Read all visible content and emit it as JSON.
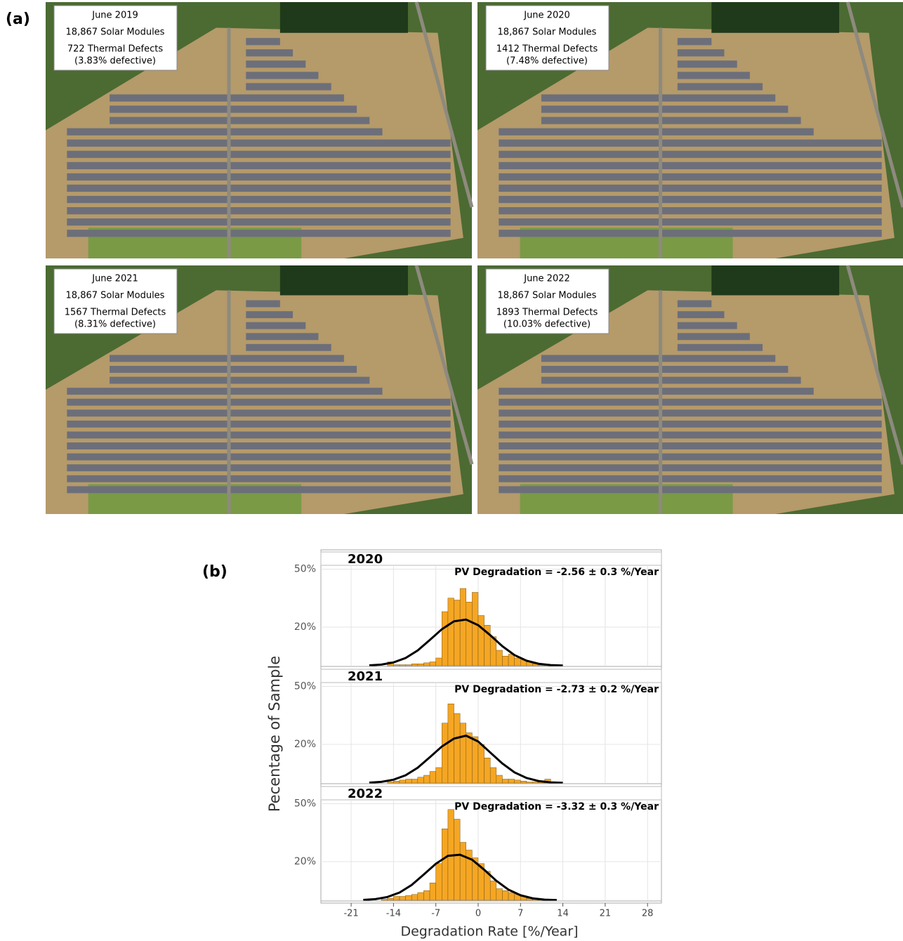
{
  "figure": {
    "panel_a_label": "(a)",
    "panel_b_label": "(b)"
  },
  "aerial_panels": [
    {
      "date": "June 2019",
      "modules": "18,867 Solar Modules",
      "defects": "722 Thermal Defects",
      "percent": "(3.83% defective)"
    },
    {
      "date": "June 2020",
      "modules": "18,867 Solar Modules",
      "defects": "1412 Thermal Defects",
      "percent": "(7.48% defective)"
    },
    {
      "date": "June 2021",
      "modules": "18,867 Solar Modules",
      "defects": "1567 Thermal Defects",
      "percent": "(8.31% defective)"
    },
    {
      "date": "June 2022",
      "modules": "18,867 Solar Modules",
      "defects": "1893 Thermal Defects",
      "percent": "(10.03% defective)"
    }
  ],
  "chart_data": [
    {
      "type": "histogram",
      "title": "2020",
      "annotation": "PV Degradation = -2.56 ± 0.3 %/Year",
      "color": "#f5a623",
      "bins": [
        -16,
        -15,
        -14,
        -13,
        -12,
        -11,
        -10,
        -9,
        -8,
        -7,
        -6,
        -5,
        -4,
        -3,
        -2,
        -1,
        0,
        1,
        2,
        3,
        4,
        5,
        6,
        7,
        8,
        9,
        10,
        11,
        12,
        13,
        14
      ],
      "values": [
        0,
        2,
        0.5,
        0.5,
        0.5,
        1,
        1,
        1.5,
        2,
        4,
        28,
        35,
        34,
        40,
        33,
        38,
        26,
        21,
        15,
        8,
        5,
        6,
        4,
        3,
        2,
        1,
        1,
        0.5,
        0,
        0
      ],
      "curve": {
        "x": [
          -18,
          -16,
          -14,
          -12,
          -10,
          -8,
          -6,
          -4,
          -2,
          0,
          2,
          4,
          6,
          8,
          10,
          12,
          14
        ],
        "values": [
          0.2,
          0.6,
          1.7,
          4,
          7.9,
          13.3,
          18.9,
          23,
          23.9,
          21,
          15.8,
          10.1,
          5.5,
          2.6,
          1,
          0.3,
          0.1
        ]
      },
      "xlim": [
        -26,
        30.3
      ],
      "ylim": [
        0,
        52
      ],
      "yticks": [
        {
          "value": 20,
          "label": "20%"
        },
        {
          "value": 50,
          "label": "50%"
        }
      ]
    },
    {
      "type": "histogram",
      "title": "2021",
      "annotation": "PV Degradation = -2.73 ± 0.2 %/Year",
      "color": "#f5a623",
      "bins": [
        -16,
        -15,
        -14,
        -13,
        -12,
        -11,
        -10,
        -9,
        -8,
        -7,
        -6,
        -5,
        -4,
        -3,
        -2,
        -1,
        0,
        1,
        2,
        3,
        4,
        5,
        6,
        7,
        8,
        9,
        10,
        11,
        12,
        13,
        14
      ],
      "values": [
        0,
        0.5,
        1,
        1.5,
        2,
        2,
        3,
        4,
        6,
        8,
        31,
        41,
        36,
        31,
        26,
        24,
        20,
        13,
        8,
        4,
        2,
        2,
        1.5,
        1,
        0.5,
        0.5,
        0.5,
        2,
        0,
        0
      ],
      "curve": {
        "x": [
          -18,
          -16,
          -14,
          -12,
          -10,
          -8,
          -6,
          -4,
          -2,
          0,
          2,
          4,
          6,
          8,
          10,
          12,
          14
        ],
        "values": [
          0.2,
          0.6,
          1.7,
          4,
          7.9,
          13.3,
          18.9,
          23,
          24.5,
          21.5,
          15.8,
          10.1,
          5.5,
          2.6,
          1,
          0.3,
          0.1
        ]
      },
      "xlim": [
        -26,
        30.3
      ],
      "ylim": [
        0,
        52
      ],
      "yticks": [
        {
          "value": 20,
          "label": "20%"
        },
        {
          "value": 50,
          "label": "50%"
        }
      ]
    },
    {
      "type": "histogram",
      "title": "2022",
      "annotation": "PV Degradation = -3.32 ± 0.3 %/Year",
      "color": "#f5a623",
      "bins": [
        -16,
        -15,
        -14,
        -13,
        -12,
        -11,
        -10,
        -9,
        -8,
        -7,
        -6,
        -5,
        -4,
        -3,
        -2,
        -1,
        0,
        1,
        2,
        3,
        4,
        5,
        6,
        7,
        8,
        9,
        10,
        11,
        12,
        13,
        14
      ],
      "values": [
        0.5,
        1,
        2,
        2,
        2.5,
        3,
        4,
        5,
        9,
        19,
        37,
        47,
        42,
        30,
        26,
        22,
        19,
        15,
        10,
        6,
        5,
        4,
        3,
        2,
        1,
        0.5,
        0.5,
        0.3,
        0,
        0
      ],
      "curve": {
        "x": [
          -19,
          -17,
          -15,
          -13,
          -11,
          -9,
          -7,
          -5,
          -3,
          -1,
          1,
          3,
          5,
          7,
          9,
          11,
          13
        ],
        "values": [
          0.2,
          0.6,
          1.7,
          4,
          7.9,
          13.3,
          18.9,
          23,
          23.6,
          21,
          15.8,
          10.1,
          5.5,
          2.6,
          1,
          0.3,
          0.1
        ]
      },
      "xlim": [
        -26,
        30.3
      ],
      "ylim": [
        0,
        52
      ],
      "yticks": [
        {
          "value": 20,
          "label": "20%"
        },
        {
          "value": 50,
          "label": "50%"
        }
      ],
      "xticks": [
        -21,
        -14,
        -7,
        0,
        7,
        14,
        21,
        28
      ],
      "xlabel": "Degradation Rate [%/Year]",
      "ylabel": "Pecentage of Sample"
    }
  ]
}
